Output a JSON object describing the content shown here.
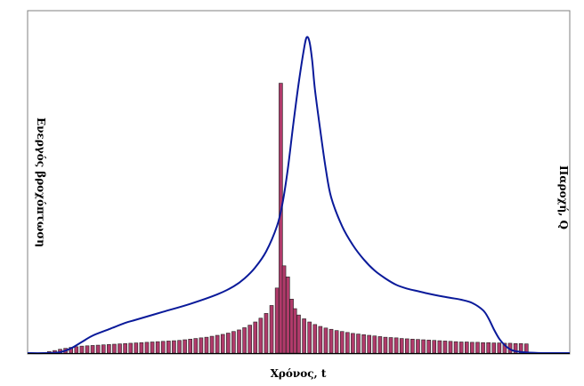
{
  "chart_data": {
    "type": "bar",
    "title": "",
    "xlabel": "Χρόνος, t",
    "ylabel_left": "Ενεργός βροχόπτωση",
    "ylabel_right": "Παροχή, Q",
    "ticks": "none",
    "grid": false,
    "legend": "none",
    "xlim": [
      0,
      100
    ],
    "ylim": [
      0,
      100
    ],
    "series": [
      {
        "type": "bar",
        "color": "#B03A6A",
        "stroke": "#222222",
        "x": [
          4,
          5,
          6,
          7,
          8,
          9,
          10,
          11,
          12,
          13,
          14,
          15,
          16,
          17,
          18,
          19,
          20,
          21,
          22,
          23,
          24,
          25,
          26,
          27,
          28,
          29,
          30,
          31,
          32,
          33,
          34,
          35,
          36,
          37,
          38,
          39,
          40,
          41,
          42,
          43,
          44,
          45,
          46,
          46.7,
          47.3,
          48,
          48.7,
          49.3,
          50,
          51,
          52,
          53,
          54,
          55,
          56,
          57,
          58,
          59,
          60,
          61,
          62,
          63,
          64,
          65,
          66,
          67,
          68,
          69,
          70,
          71,
          72,
          73,
          74,
          75,
          76,
          77,
          78,
          79,
          80,
          81,
          82,
          83,
          84,
          85,
          86,
          87,
          88,
          89,
          90,
          91,
          92
        ],
        "values": [
          0.5,
          0.8,
          1.2,
          1.5,
          1.8,
          2.0,
          2.2,
          2.3,
          2.4,
          2.5,
          2.6,
          2.7,
          2.8,
          2.9,
          3.0,
          3.1,
          3.2,
          3.3,
          3.4,
          3.5,
          3.6,
          3.7,
          3.8,
          3.9,
          4.0,
          4.2,
          4.4,
          4.6,
          4.8,
          5.0,
          5.3,
          5.6,
          5.9,
          6.3,
          6.8,
          7.3,
          8.0,
          8.8,
          9.8,
          11.0,
          12.5,
          15.0,
          20.5,
          85.0,
          27.5,
          24.0,
          17.0,
          14.0,
          12.0,
          10.8,
          9.8,
          9.0,
          8.4,
          7.9,
          7.5,
          7.1,
          6.8,
          6.5,
          6.2,
          6.0,
          5.8,
          5.6,
          5.4,
          5.2,
          5.0,
          4.9,
          4.8,
          4.6,
          4.5,
          4.4,
          4.3,
          4.2,
          4.1,
          4.0,
          3.9,
          3.8,
          3.7,
          3.6,
          3.5,
          3.5,
          3.4,
          3.4,
          3.3,
          3.3,
          3.2,
          3.2,
          3.1,
          3.1,
          3.0,
          3.0,
          2.9
        ]
      },
      {
        "type": "line",
        "color": "#0A1A9A",
        "x": [
          0,
          3,
          6,
          8,
          10,
          12,
          15,
          18,
          20,
          25,
          30,
          35,
          38,
          40,
          42,
          44,
          46,
          47,
          48,
          49,
          50,
          51,
          51.5,
          52,
          52.5,
          53,
          54,
          55,
          56,
          58,
          60,
          62,
          64,
          66,
          68,
          70,
          72,
          74,
          76,
          78,
          80,
          82,
          84,
          85,
          86,
          87,
          88,
          89,
          90,
          92,
          95,
          98,
          100
        ],
        "values": [
          0,
          0,
          0.3,
          1.5,
          3.5,
          5.5,
          7.5,
          9.5,
          10.5,
          13,
          15.5,
          18.5,
          21,
          23.5,
          27,
          32,
          40,
          47,
          58,
          72,
          85,
          96,
          99.5,
          98,
          92,
          83,
          70,
          58,
          49,
          40,
          34,
          29.5,
          26,
          23.5,
          21.5,
          20.3,
          19.5,
          18.7,
          18.0,
          17.4,
          16.8,
          15.8,
          13.5,
          11,
          7.5,
          4.5,
          2.5,
          1.2,
          0.6,
          0.2,
          0,
          0,
          0
        ]
      }
    ]
  }
}
